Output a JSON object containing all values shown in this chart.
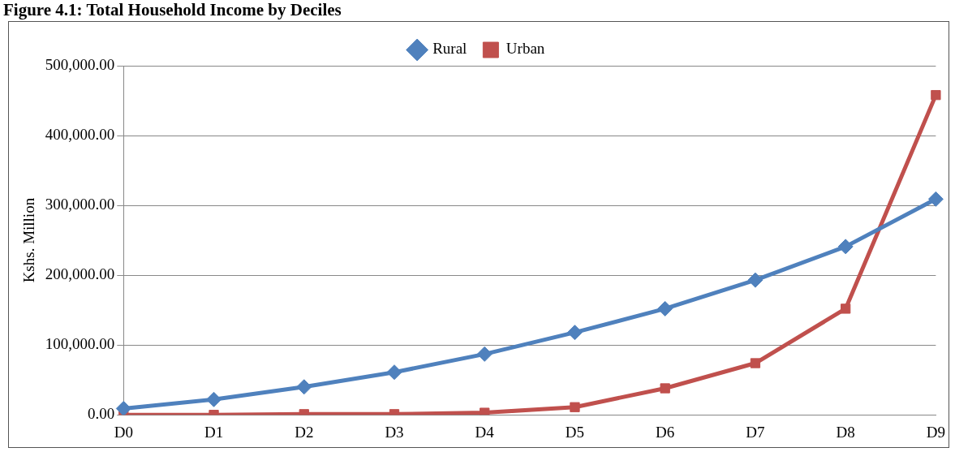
{
  "chart_data": {
    "type": "line",
    "title": "Figure 4.1: Total Household Income by Deciles",
    "ylabel": "Kshs. Million",
    "categories": [
      "D0",
      "D1",
      "D2",
      "D3",
      "D4",
      "D5",
      "D6",
      "D7",
      "D8",
      "D9"
    ],
    "series": [
      {
        "name": "Rural",
        "color": "#4f81bd",
        "marker": "diamond",
        "values": [
          9000,
          22000,
          40000,
          61000,
          87000,
          118000,
          152000,
          193000,
          241000,
          309000
        ]
      },
      {
        "name": "Urban",
        "color": "#c0504d",
        "marker": "square",
        "values": [
          0,
          0,
          1000,
          1000,
          3000,
          11000,
          38000,
          74000,
          152000,
          458000
        ]
      }
    ],
    "ylim": [
      0,
      500000
    ],
    "yticks": [
      {
        "value": 0,
        "label": "0.00"
      },
      {
        "value": 100000,
        "label": "100,000.00"
      },
      {
        "value": 200000,
        "label": "200,000.00"
      },
      {
        "value": 300000,
        "label": "300,000.00"
      },
      {
        "value": 400000,
        "label": "400,000.00"
      },
      {
        "value": 500000,
        "label": "500,000.00"
      }
    ],
    "grid": "y",
    "legend": "top",
    "line_style": "solid"
  }
}
